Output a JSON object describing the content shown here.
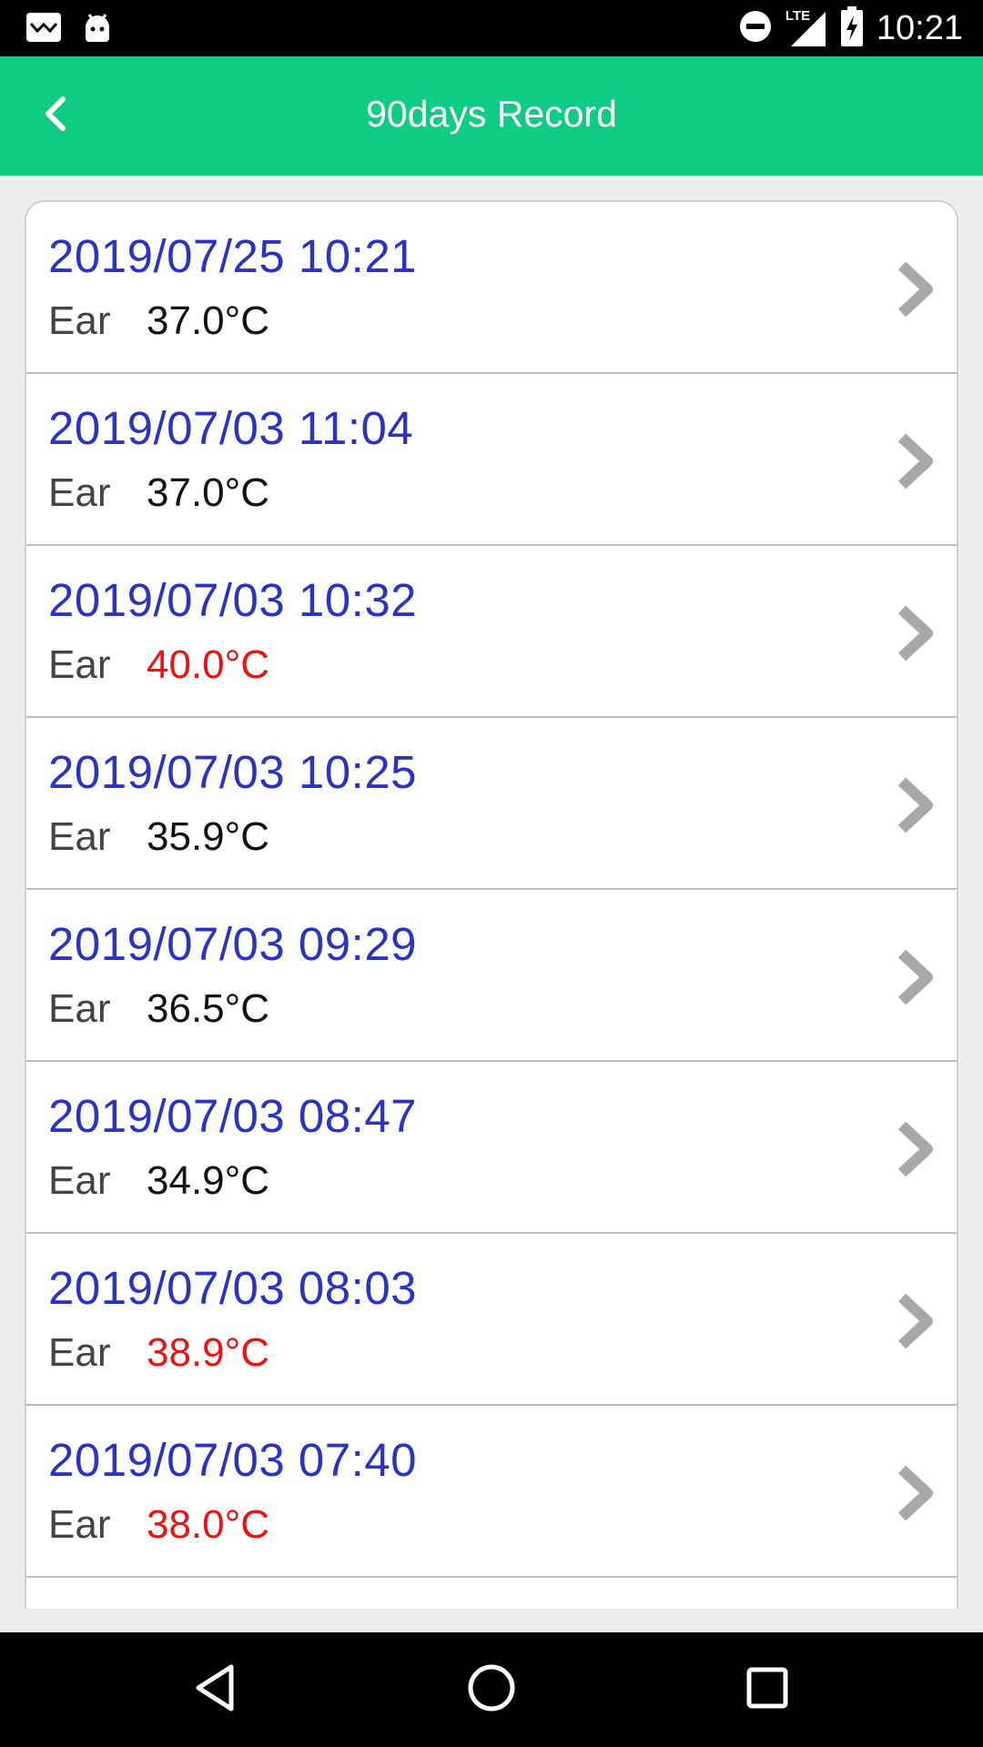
{
  "status_bar": {
    "time": "10:21",
    "network": "LTE",
    "icons": [
      "mail-icon",
      "android-icon",
      "do-not-disturb-icon",
      "signal-icon",
      "battery-charging-icon"
    ]
  },
  "header": {
    "title": "90days Record",
    "back_icon": "chevron-left-icon"
  },
  "colors": {
    "accent": "#0fcb83",
    "date_text": "#2b32c4",
    "normal_temp": "#111111",
    "high_temp": "#ee1111"
  },
  "records": [
    {
      "datetime": "2019/07/25 10:21",
      "site": "Ear",
      "temp": "37.0°C",
      "high": false
    },
    {
      "datetime": "2019/07/03 11:04",
      "site": "Ear",
      "temp": "37.0°C",
      "high": false
    },
    {
      "datetime": "2019/07/03 10:32",
      "site": "Ear",
      "temp": "40.0°C",
      "high": true
    },
    {
      "datetime": "2019/07/03 10:25",
      "site": "Ear",
      "temp": "35.9°C",
      "high": false
    },
    {
      "datetime": "2019/07/03 09:29",
      "site": "Ear",
      "temp": "36.5°C",
      "high": false
    },
    {
      "datetime": "2019/07/03 08:47",
      "site": "Ear",
      "temp": "34.9°C",
      "high": false
    },
    {
      "datetime": "2019/07/03 08:03",
      "site": "Ear",
      "temp": "38.9°C",
      "high": true
    },
    {
      "datetime": "2019/07/03 07:40",
      "site": "Ear",
      "temp": "38.0°C",
      "high": true
    }
  ],
  "nav_bar": {
    "icons": [
      "back-triangle-icon",
      "home-circle-icon",
      "recents-square-icon"
    ]
  }
}
